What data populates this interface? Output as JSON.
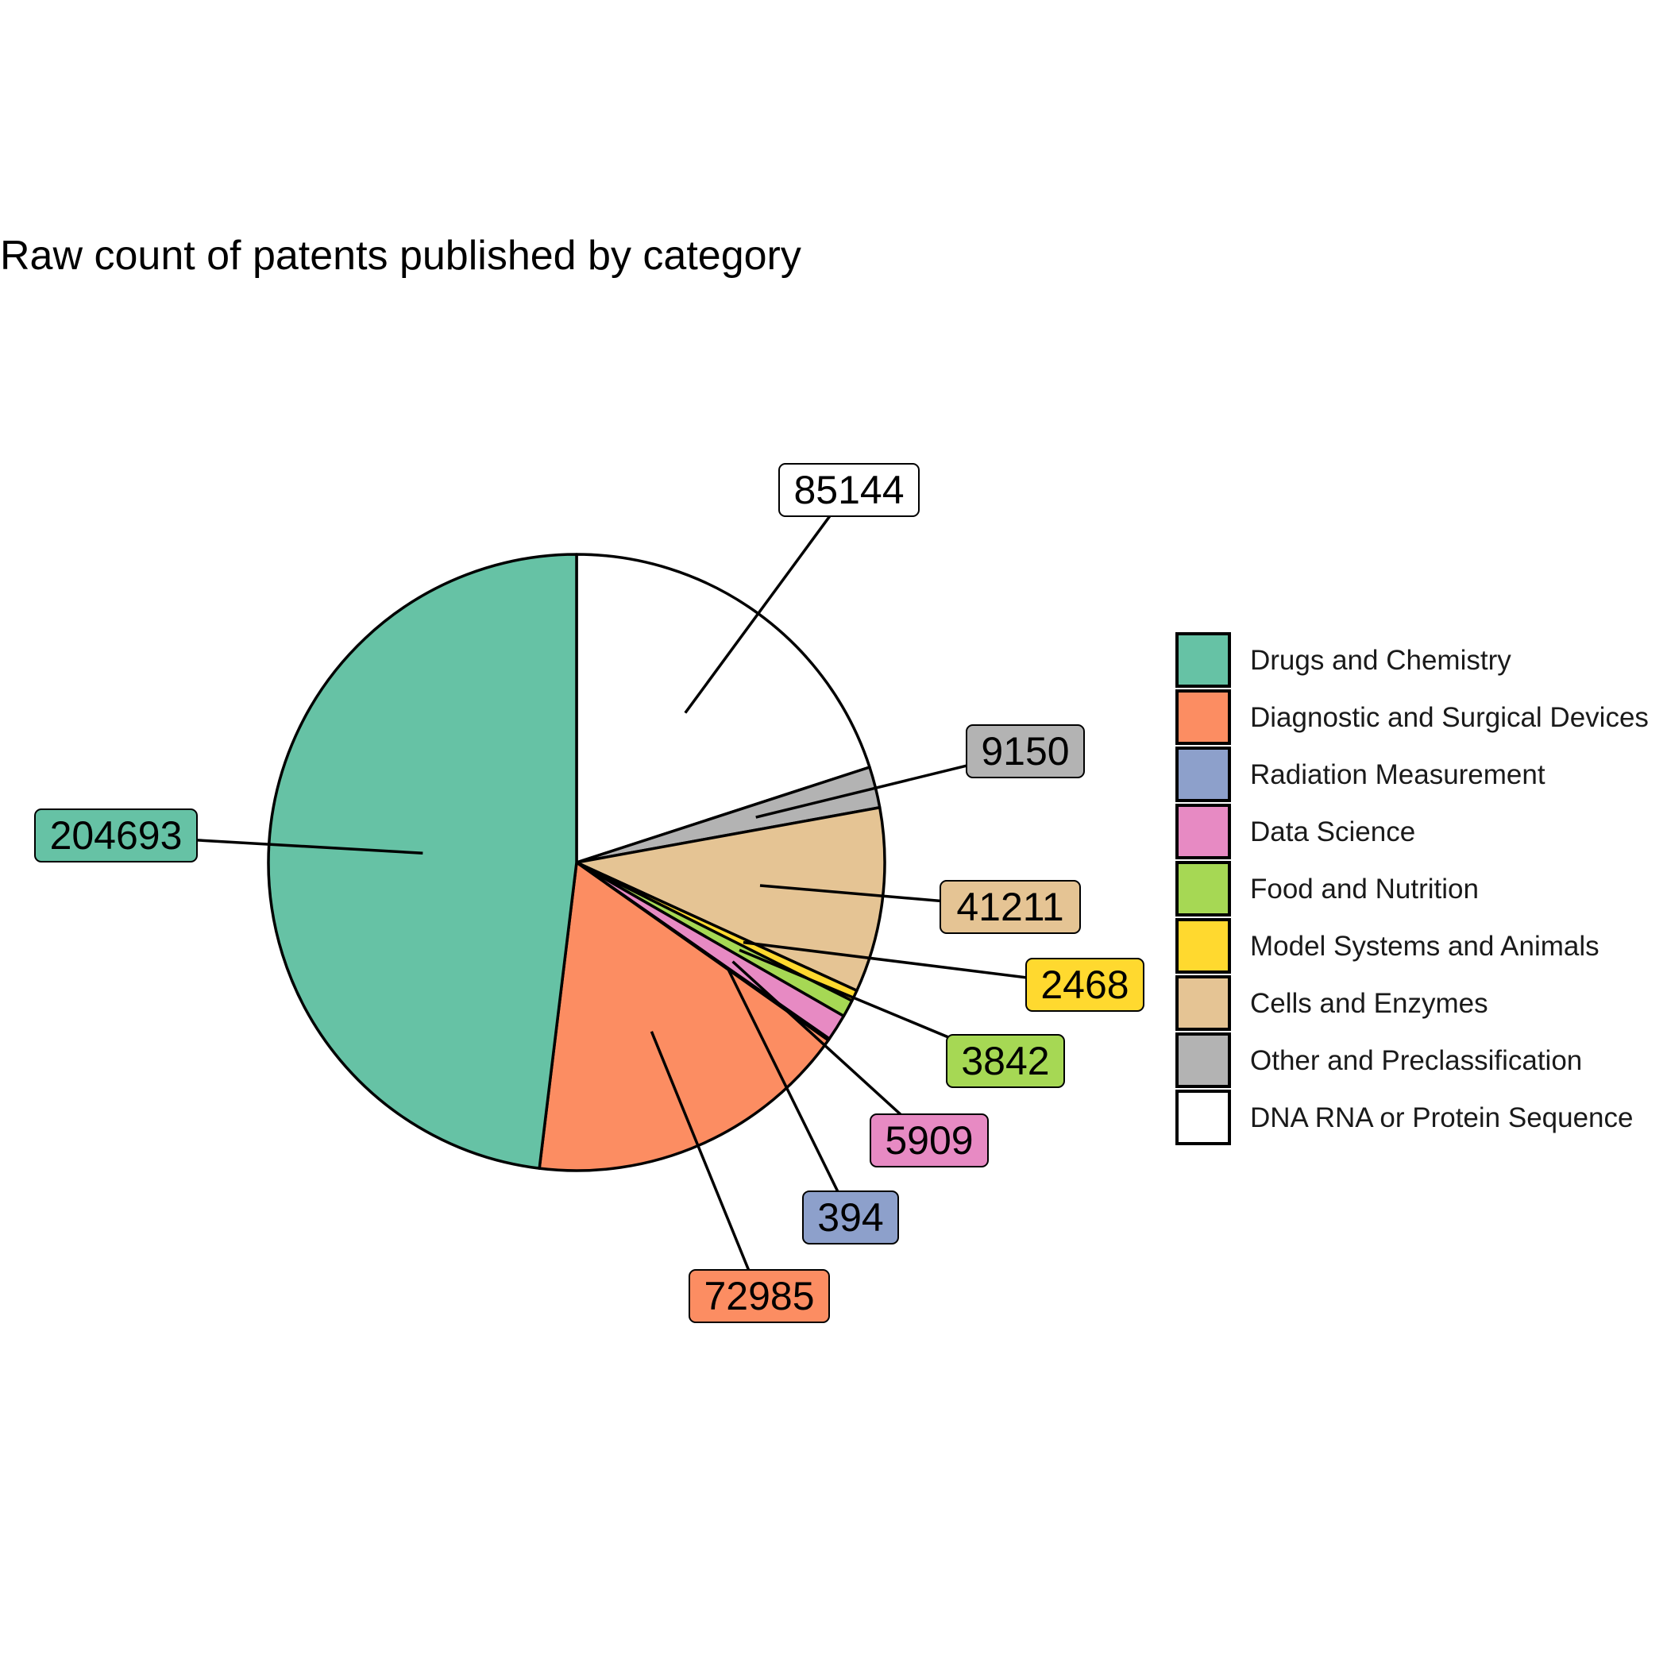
{
  "chart_data": {
    "type": "pie",
    "title": "Raw count of patents published by category",
    "legend_position": "right",
    "slices": [
      {
        "name": "DNA RNA or Protein Sequence",
        "value": 85144,
        "color": "#ffffff"
      },
      {
        "name": "Other and Preclassification",
        "value": 9150,
        "color": "#b3b3b3"
      },
      {
        "name": "Cells and Enzymes",
        "value": 41211,
        "color": "#e5c494"
      },
      {
        "name": "Model Systems and Animals",
        "value": 2468,
        "color": "#ffd92f"
      },
      {
        "name": "Food and Nutrition",
        "value": 3842,
        "color": "#a6d854"
      },
      {
        "name": "Data Science",
        "value": 5909,
        "color": "#e78ac3"
      },
      {
        "name": "Radiation Measurement",
        "value": 394,
        "color": "#8da0cb"
      },
      {
        "name": "Diagnostic and Surgical Devices",
        "value": 72985,
        "color": "#fc8d62"
      },
      {
        "name": "Drugs and Chemistry",
        "value": 204693,
        "color": "#66c2a5"
      }
    ],
    "legend_order": [
      "Drugs and Chemistry",
      "Diagnostic and Surgical Devices",
      "Radiation Measurement",
      "Data Science",
      "Food and Nutrition",
      "Model Systems and Animals",
      "Cells and Enzymes",
      "Other and Preclassification",
      "DNA RNA or Protein Sequence"
    ]
  }
}
